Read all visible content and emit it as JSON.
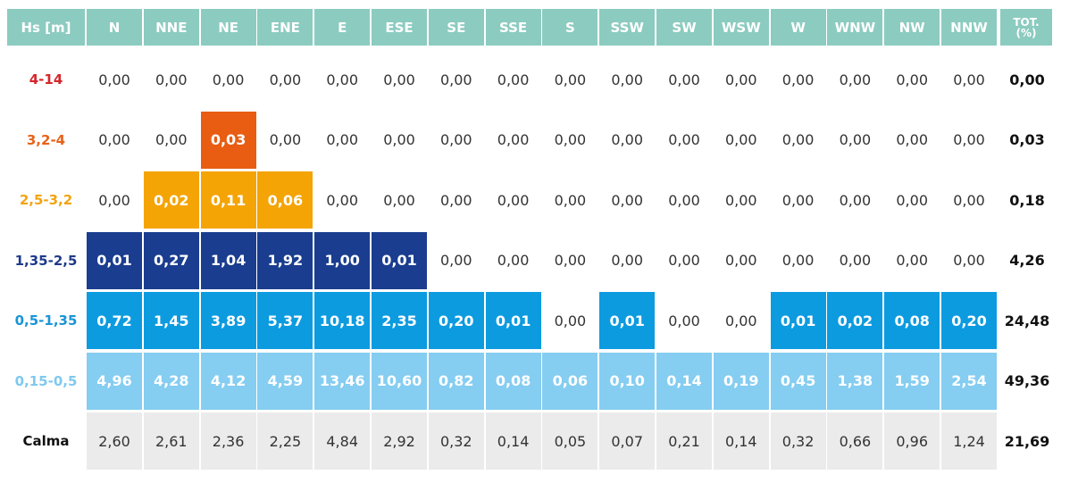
{
  "chart_data": {
    "type": "table",
    "header_label": "Hs [m]",
    "total_label": "TOT. (%)",
    "directions": [
      "N",
      "NNE",
      "NE",
      "ENE",
      "E",
      "ESE",
      "SE",
      "SSE",
      "S",
      "SSW",
      "SW",
      "WSW",
      "W",
      "WNW",
      "NW",
      "NNW"
    ],
    "rows": [
      {
        "label": "4-14",
        "label_color": "#d4262b",
        "fill": "#c1272d",
        "highlight": [],
        "values": [
          "0,00",
          "0,00",
          "0,00",
          "0,00",
          "0,00",
          "0,00",
          "0,00",
          "0,00",
          "0,00",
          "0,00",
          "0,00",
          "0,00",
          "0,00",
          "0,00",
          "0,00",
          "0,00"
        ],
        "total": "0,00"
      },
      {
        "label": "3,2-4",
        "label_color": "#e8621a",
        "fill": "#e85d12",
        "highlight": [
          2
        ],
        "values": [
          "0,00",
          "0,00",
          "0,03",
          "0,00",
          "0,00",
          "0,00",
          "0,00",
          "0,00",
          "0,00",
          "0,00",
          "0,00",
          "0,00",
          "0,00",
          "0,00",
          "0,00",
          "0,00"
        ],
        "total": "0,03"
      },
      {
        "label": "2,5-3,2",
        "label_color": "#f2a40f",
        "fill": "#f4a405",
        "highlight": [
          1,
          2,
          3
        ],
        "values": [
          "0,00",
          "0,02",
          "0,11",
          "0,06",
          "0,00",
          "0,00",
          "0,00",
          "0,00",
          "0,00",
          "0,00",
          "0,00",
          "0,00",
          "0,00",
          "0,00",
          "0,00",
          "0,00"
        ],
        "total": "0,18"
      },
      {
        "label": "1,35-2,5",
        "label_color": "#1f3a8a",
        "fill": "#1a3d8f",
        "highlight": [
          0,
          1,
          2,
          3,
          4,
          5
        ],
        "values": [
          "0,01",
          "0,27",
          "1,04",
          "1,92",
          "1,00",
          "0,01",
          "0,00",
          "0,00",
          "0,00",
          "0,00",
          "0,00",
          "0,00",
          "0,00",
          "0,00",
          "0,00",
          "0,00"
        ],
        "total": "4,26"
      },
      {
        "label": "0,5-1,35",
        "label_color": "#1a95d6",
        "fill": "#0d9be0",
        "highlight": [
          0,
          1,
          2,
          3,
          4,
          5,
          6,
          7,
          9,
          12,
          13,
          14,
          15
        ],
        "values": [
          "0,72",
          "1,45",
          "3,89",
          "5,37",
          "10,18",
          "2,35",
          "0,20",
          "0,01",
          "0,00",
          "0,01",
          "0,00",
          "0,00",
          "0,01",
          "0,02",
          "0,08",
          "0,20"
        ],
        "total": "24,48"
      },
      {
        "label": "0,15-0,5",
        "label_color": "#7fc9ee",
        "fill": "#85cdf1",
        "highlight": [
          0,
          1,
          2,
          3,
          4,
          5,
          6,
          7,
          8,
          9,
          10,
          11,
          12,
          13,
          14,
          15
        ],
        "values": [
          "4,96",
          "4,28",
          "4,12",
          "4,59",
          "13,46",
          "10,60",
          "0,82",
          "0,08",
          "0,06",
          "0,10",
          "0,14",
          "0,19",
          "0,45",
          "1,38",
          "1,59",
          "2,54"
        ],
        "total": "49,36"
      },
      {
        "label": "Calma",
        "label_color": "#111111",
        "fill": "#ebebeb",
        "highlight": "all-grey",
        "values": [
          "2,60",
          "2,61",
          "2,36",
          "2,25",
          "4,84",
          "2,92",
          "0,32",
          "0,14",
          "0,05",
          "0,07",
          "0,21",
          "0,14",
          "0,32",
          "0,66",
          "0,96",
          "1,24"
        ],
        "total": "21,69"
      }
    ],
    "colors": {
      "header_bg": "#8ccbc0",
      "header_text": "#ffffff",
      "calma_bg": "#ebebeb"
    }
  }
}
